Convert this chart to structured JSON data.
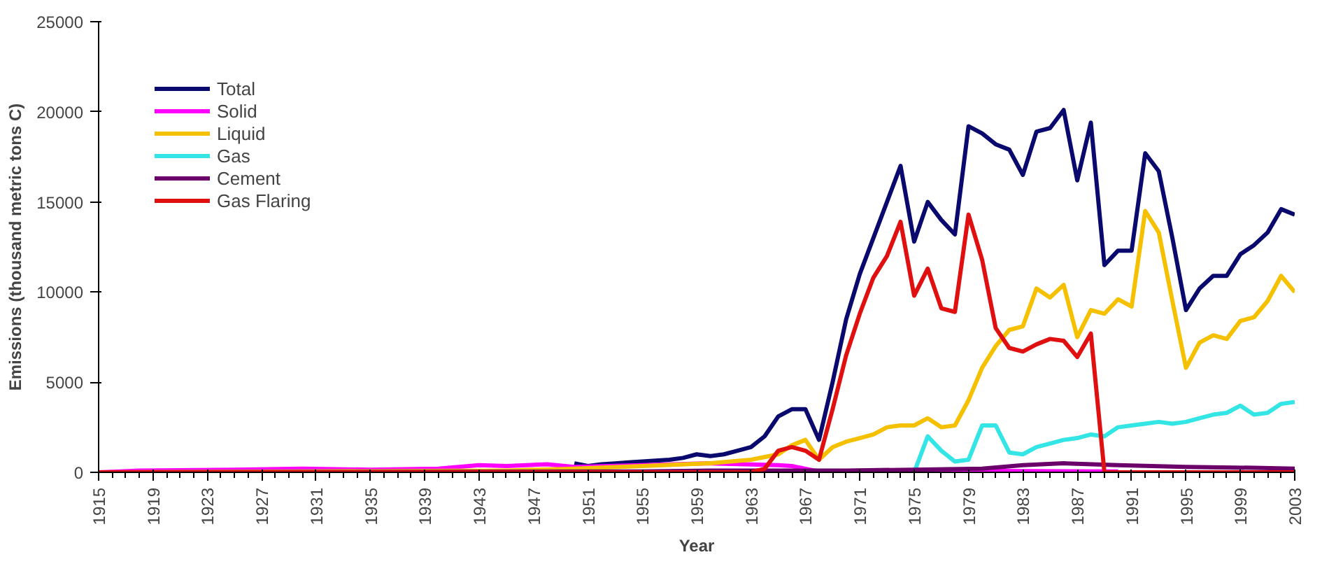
{
  "chart_data": {
    "type": "line",
    "xlabel": "Year",
    "ylabel": "Emissions (thousand metric tons C)",
    "xlim": [
      1915,
      2003
    ],
    "xticks": [
      1915,
      1919,
      1923,
      1927,
      1931,
      1935,
      1939,
      1943,
      1947,
      1951,
      1955,
      1959,
      1963,
      1967,
      1971,
      1975,
      1979,
      1983,
      1987,
      1991,
      1995,
      1999,
      2003
    ],
    "ylim": [
      0,
      25000
    ],
    "yticks": [
      0,
      5000,
      10000,
      15000,
      20000,
      25000
    ],
    "grid": false,
    "legend": "top left",
    "marker": "none",
    "line_style": "solid",
    "series": [
      {
        "name": "Total",
        "color": "#0a0a6e",
        "x": [
          1950,
          1951,
          1952,
          1953,
          1954,
          1955,
          1956,
          1957,
          1958,
          1959,
          1960,
          1961,
          1962,
          1963,
          1964,
          1965,
          1966,
          1967,
          1968,
          1969,
          1970,
          1971,
          1972,
          1973,
          1974,
          1975,
          1976,
          1977,
          1978,
          1979,
          1980,
          1981,
          1982,
          1983,
          1984,
          1985,
          1986,
          1987,
          1988,
          1989,
          1990,
          1991,
          1992,
          1993,
          1994,
          1995,
          1996,
          1997,
          1998,
          1999,
          2000,
          2001,
          2002,
          2003
        ],
        "values": [
          500,
          350,
          450,
          500,
          550,
          600,
          650,
          700,
          800,
          1000,
          900,
          1000,
          1200,
          1400,
          2000,
          3100,
          3500,
          3500,
          1800,
          5000,
          8500,
          11000,
          13000,
          15000,
          17000,
          12800,
          15000,
          14000,
          13200,
          19200,
          18800,
          18200,
          17900,
          16500,
          18900,
          19100,
          20100,
          16200,
          19400,
          11500,
          12300,
          12300,
          17700,
          16700,
          13000,
          9000,
          10200,
          10900,
          10900,
          12100,
          12600,
          13300,
          14600,
          14300
        ]
      },
      {
        "name": "Solid",
        "color": "#ff00ff",
        "x": [
          1915,
          1918,
          1925,
          1930,
          1935,
          1940,
          1943,
          1945,
          1948,
          1950,
          1955,
          1960,
          1965,
          1966,
          1967,
          1968,
          1975,
          1990
        ],
        "values": [
          0,
          100,
          150,
          200,
          150,
          200,
          400,
          350,
          450,
          300,
          400,
          500,
          400,
          350,
          200,
          50,
          100,
          50
        ]
      },
      {
        "name": "Liquid",
        "color": "#f5c000",
        "x": [
          1915,
          1930,
          1945,
          1950,
          1955,
          1960,
          1963,
          1965,
          1966,
          1967,
          1968,
          1969,
          1970,
          1971,
          1972,
          1973,
          1974,
          1975,
          1976,
          1977,
          1978,
          1979,
          1980,
          1981,
          1982,
          1983,
          1984,
          1985,
          1986,
          1987,
          1988,
          1989,
          1990,
          1991,
          1992,
          1993,
          1994,
          1995,
          1996,
          1997,
          1998,
          1999,
          2000,
          2001,
          2002,
          2003
        ],
        "values": [
          0,
          50,
          100,
          200,
          350,
          500,
          700,
          1000,
          1500,
          1800,
          700,
          1400,
          1700,
          1900,
          2100,
          2500,
          2600,
          2600,
          3000,
          2500,
          2600,
          4000,
          5800,
          7000,
          7900,
          8100,
          10200,
          9700,
          10400,
          7500,
          9000,
          8800,
          9600,
          9200,
          14500,
          13300,
          9500,
          5800,
          7200,
          7600,
          7400,
          8400,
          8600,
          9500,
          10900,
          10000
        ]
      },
      {
        "name": "Gas",
        "color": "#33e5e5",
        "x": [
          1975,
          1976,
          1977,
          1978,
          1979,
          1980,
          1981,
          1982,
          1983,
          1984,
          1985,
          1986,
          1987,
          1988,
          1989,
          1990,
          1991,
          1992,
          1993,
          1994,
          1995,
          1996,
          1997,
          1998,
          1999,
          2000,
          2001,
          2002,
          2003
        ],
        "values": [
          0,
          2000,
          1200,
          600,
          700,
          2600,
          2600,
          1100,
          1000,
          1400,
          1600,
          1800,
          1900,
          2100,
          2000,
          2500,
          2600,
          2700,
          2800,
          2700,
          2800,
          3000,
          3200,
          3300,
          3700,
          3200,
          3300,
          3800,
          3900
        ]
      },
      {
        "name": "Cement",
        "color": "#6b006b",
        "x": [
          1915,
          1955,
          1960,
          1965,
          1970,
          1975,
          1980,
          1983,
          1986,
          1990,
          1995,
          2000,
          2003
        ],
        "values": [
          0,
          50,
          100,
          100,
          100,
          150,
          200,
          400,
          500,
          400,
          300,
          250,
          200
        ]
      },
      {
        "name": "Gas Flaring",
        "color": "#e01010",
        "x": [
          1915,
          1963,
          1964,
          1965,
          1966,
          1967,
          1968,
          1969,
          1970,
          1971,
          1972,
          1973,
          1974,
          1975,
          1976,
          1977,
          1978,
          1979,
          1980,
          1981,
          1982,
          1983,
          1984,
          1985,
          1986,
          1987,
          1988,
          1989,
          2003
        ],
        "values": [
          0,
          0,
          200,
          1200,
          1400,
          1200,
          700,
          3500,
          6500,
          8800,
          10800,
          12000,
          13900,
          9800,
          11300,
          9100,
          8900,
          14300,
          11800,
          8000,
          6900,
          6700,
          7100,
          7400,
          7300,
          6400,
          7700,
          0,
          0
        ]
      }
    ]
  }
}
